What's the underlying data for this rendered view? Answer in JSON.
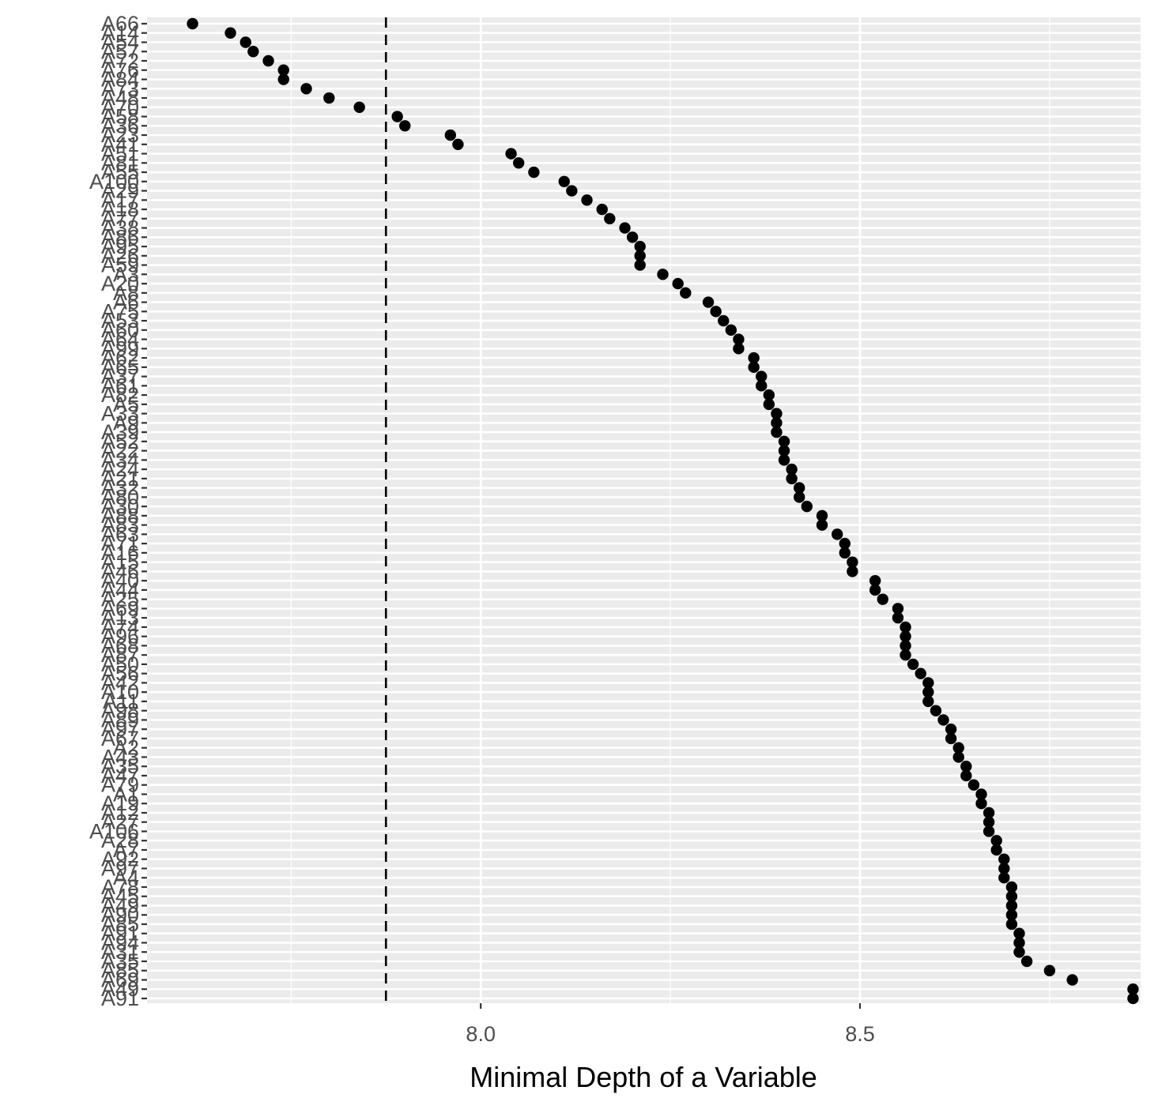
{
  "chart_data": {
    "type": "scatter",
    "xlabel": "Minimal Depth of a Variable",
    "ylabel": "",
    "xlim": [
      7.56,
      8.87
    ],
    "x_ticks": [
      8.0,
      8.5
    ],
    "x_tick_labels": [
      "8.0",
      "8.5"
    ],
    "x_minor_ticks": [
      7.75,
      8.25,
      8.75
    ],
    "threshold_line": 7.875,
    "grid": true,
    "legend": "none",
    "colors": {
      "panel": "#ebebeb",
      "grid": "#ffffff",
      "point": "#000000",
      "line": "#000000",
      "tick_text": "#4d4d4d"
    },
    "categories": [
      "A66",
      "A14",
      "A54",
      "A57",
      "A72",
      "A76",
      "A84",
      "A73",
      "A48",
      "A70",
      "A58",
      "A36",
      "A23",
      "A41",
      "A51",
      "A81",
      "A55",
      "A100",
      "A29",
      "A17",
      "A18",
      "A77",
      "A38",
      "A86",
      "A95",
      "A26",
      "A59",
      "A3",
      "A20",
      "A8",
      "A6",
      "A75",
      "A53",
      "A60",
      "A64",
      "A99",
      "A62",
      "A65",
      "A37",
      "A61",
      "A82",
      "A5",
      "A33",
      "A9",
      "A39",
      "A52",
      "A22",
      "A34",
      "A24",
      "A21",
      "A32",
      "A80",
      "A30",
      "A88",
      "A83",
      "A63",
      "A71",
      "A16",
      "A15",
      "A46",
      "A40",
      "A44",
      "A25",
      "A69",
      "A13",
      "A74",
      "A96",
      "A68",
      "A87",
      "A50",
      "A56",
      "A42",
      "A10",
      "A11",
      "A98",
      "A89",
      "A97",
      "A67",
      "A2",
      "A43",
      "A35",
      "A47",
      "A79",
      "A1",
      "A19",
      "A12",
      "A27",
      "A106",
      "A28",
      "A7",
      "A92",
      "A97",
      "A4",
      "A78",
      "A45",
      "A49",
      "A90",
      "A85",
      "A91",
      "A94",
      "A31",
      "A35",
      "A85",
      "A69",
      "A49",
      "A91"
    ],
    "values": [
      7.62,
      7.67,
      7.69,
      7.7,
      7.72,
      7.74,
      7.74,
      7.77,
      7.8,
      7.84,
      7.89,
      7.9,
      7.96,
      7.97,
      8.04,
      8.05,
      8.07,
      8.11,
      8.12,
      8.14,
      8.16,
      8.17,
      8.19,
      8.2,
      8.21,
      8.21,
      8.21,
      8.24,
      8.26,
      8.27,
      8.3,
      8.31,
      8.32,
      8.33,
      8.34,
      8.34,
      8.36,
      8.36,
      8.37,
      8.37,
      8.38,
      8.38,
      8.39,
      8.39,
      8.39,
      8.4,
      8.4,
      8.4,
      8.41,
      8.41,
      8.42,
      8.42,
      8.43,
      8.45,
      8.45,
      8.47,
      8.48,
      8.48,
      8.49,
      8.49,
      8.52,
      8.52,
      8.53,
      8.55,
      8.55,
      8.56,
      8.56,
      8.56,
      8.56,
      8.57,
      8.58,
      8.59,
      8.59,
      8.59,
      8.6,
      8.61,
      8.62,
      8.62,
      8.63,
      8.63,
      8.64,
      8.64,
      8.65,
      8.66,
      8.66,
      8.67,
      8.67,
      8.67,
      8.68,
      8.68,
      8.69,
      8.69,
      8.69,
      8.7,
      8.7,
      8.7,
      8.7,
      8.7,
      8.71,
      8.71,
      8.71,
      8.72,
      8.75,
      8.78,
      8.86,
      8.86
    ]
  }
}
